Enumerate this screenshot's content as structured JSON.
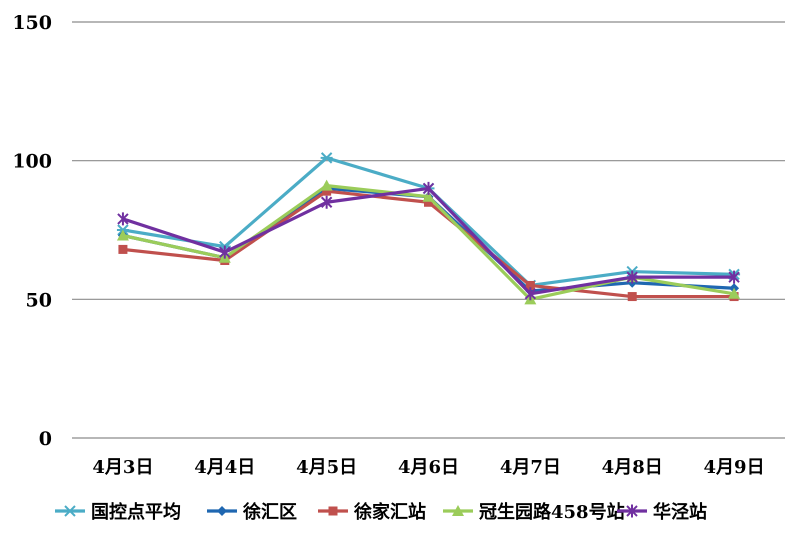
{
  "chart_data": {
    "type": "line",
    "title": "",
    "xlabel": "",
    "ylabel": "",
    "ylim": [
      0,
      150
    ],
    "yticks": [
      0,
      50,
      100,
      150
    ],
    "grid": "horizontal",
    "legend_position": "bottom",
    "categories": [
      "4月3日",
      "4月4日",
      "4月5日",
      "4月6日",
      "4月7日",
      "4月8日",
      "4月9日"
    ],
    "series": [
      {
        "name": "国控点平均",
        "color": "#4BACC6",
        "marker": "asterisk",
        "values": [
          75,
          69,
          101,
          90,
          55,
          60,
          59
        ]
      },
      {
        "name": "徐汇区",
        "color": "#1F67B1",
        "marker": "diamond",
        "values": [
          73,
          65,
          90,
          87,
          53,
          56,
          54
        ]
      },
      {
        "name": "徐家汇站",
        "color": "#C0504D",
        "marker": "square",
        "values": [
          68,
          64,
          89,
          85,
          55,
          51,
          51
        ]
      },
      {
        "name": "冠生园路458号站",
        "color": "#9BCC5A",
        "marker": "triangle",
        "values": [
          73,
          65,
          91,
          87,
          50,
          58,
          52
        ]
      },
      {
        "name": "华泾站",
        "color": "#7030A0",
        "marker": "star",
        "values": [
          79,
          67,
          85,
          90,
          52,
          58,
          58
        ]
      }
    ]
  }
}
